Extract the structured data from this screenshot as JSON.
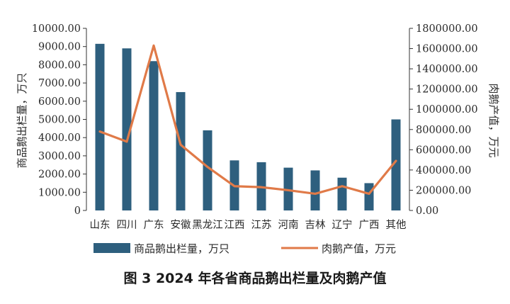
{
  "chart_data": {
    "type": "bar+line",
    "title": "",
    "caption": "图 3 2024 年各省商品鹅出栏量及肉鹅产值",
    "categories": [
      "山东",
      "四川",
      "广东",
      "安徽",
      "黑龙江",
      "江西",
      "江苏",
      "河南",
      "吉林",
      "辽宁",
      "广西",
      "其他"
    ],
    "y_left": {
      "label": "商品鹅出栏量，万只",
      "ylim": [
        0,
        10000
      ],
      "ticks": [
        "0",
        "1000.00",
        "2000.00",
        "3000.00",
        "4000.00",
        "5000.00",
        "6000.00",
        "7000.00",
        "8000.00",
        "9000.00",
        "10000.00"
      ],
      "tick_values": [
        0,
        1000,
        2000,
        3000,
        4000,
        5000,
        6000,
        7000,
        8000,
        9000,
        10000
      ]
    },
    "y_right": {
      "label": "肉鹅产值，万元",
      "ylim": [
        0,
        1800000
      ],
      "ticks": [
        "0.00",
        "200000.00",
        "400000.00",
        "600000.00",
        "800000.00",
        "1000000.00",
        "1200000.00",
        "1400000.00",
        "1600000.00",
        "1800000.00"
      ],
      "tick_values": [
        0,
        200000,
        400000,
        600000,
        800000,
        1000000,
        1200000,
        1400000,
        1600000,
        1800000
      ]
    },
    "series": [
      {
        "name": "商品鹅出栏量，万只",
        "type": "bar",
        "axis": "left",
        "color": "#2e5f7e",
        "values": [
          9150,
          8900,
          8200,
          6500,
          4400,
          2750,
          2650,
          2350,
          2200,
          1800,
          1500,
          5000
        ]
      },
      {
        "name": "肉鹅产值，万元",
        "type": "line",
        "axis": "right",
        "color": "#e07a48",
        "values": [
          780000,
          680000,
          1630000,
          650000,
          430000,
          240000,
          230000,
          200000,
          165000,
          240000,
          165000,
          490000
        ]
      }
    ],
    "legend_position": "bottom",
    "grid": false
  }
}
